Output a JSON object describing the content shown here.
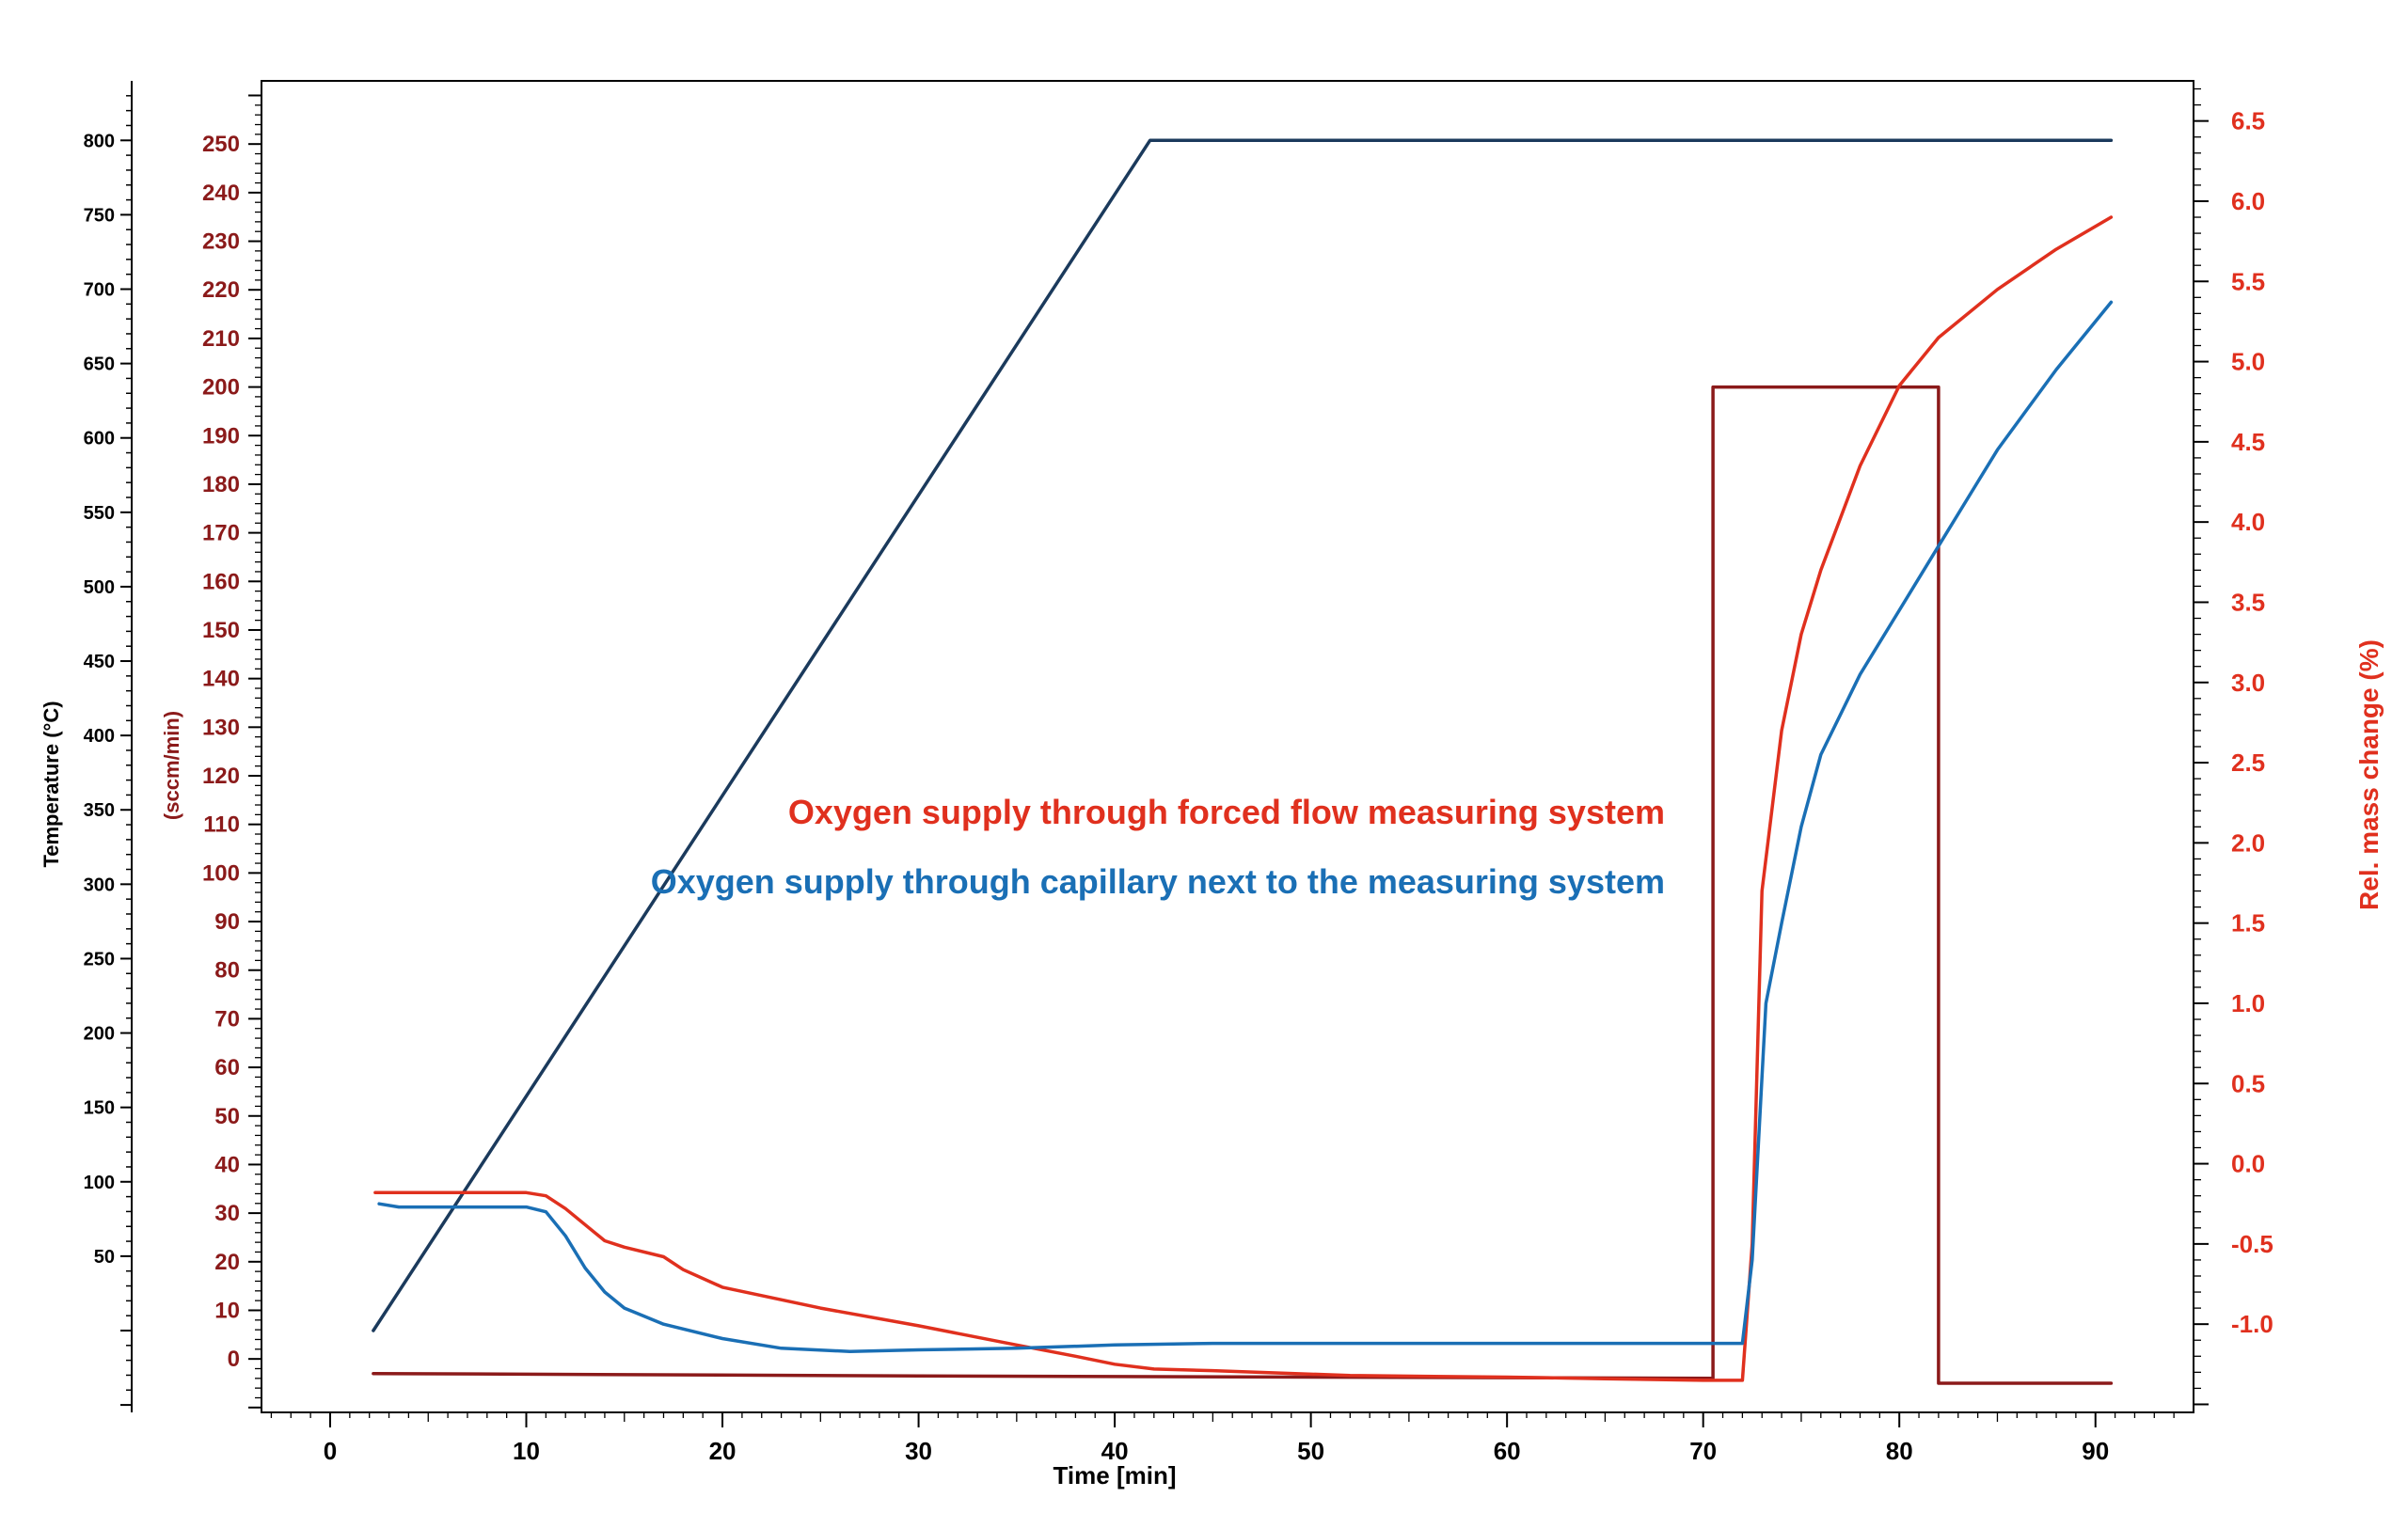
{
  "chart_data": {
    "type": "line",
    "x_axis": {
      "label": "Time [min]",
      "ticks": [
        0,
        10,
        20,
        30,
        40,
        50,
        60,
        70,
        80,
        90
      ],
      "range": [
        -3.5,
        95
      ]
    },
    "y_axes": {
      "temperature": {
        "label": "Temperature (°C)",
        "ticks": [
          50,
          100,
          150,
          200,
          250,
          300,
          350,
          400,
          450,
          500,
          550,
          600,
          650,
          700,
          750,
          800
        ],
        "range": [
          -55,
          840
        ],
        "color": "#000000"
      },
      "flow": {
        "label": "(sccm/min)",
        "ticks": [
          0,
          10,
          20,
          30,
          40,
          50,
          60,
          70,
          80,
          90,
          100,
          110,
          120,
          130,
          140,
          150,
          160,
          170,
          180,
          190,
          200,
          210,
          220,
          230,
          240,
          250
        ],
        "range": [
          -11,
          263
        ],
        "color": "#8b1a1a"
      },
      "mass": {
        "label": "Rel. mass change (%)",
        "ticks": [
          -1.0,
          -0.5,
          0.0,
          0.5,
          1.0,
          1.5,
          2.0,
          2.5,
          3.0,
          3.5,
          4.0,
          4.5,
          5.0,
          5.5,
          6.0,
          6.5
        ],
        "tick_labels": [
          "-1.0",
          "-0.5",
          "0.0",
          "0.5",
          "1.0",
          "1.5",
          "2.0",
          "2.5",
          "3.0",
          "3.5",
          "4.0",
          "4.5",
          "5.0",
          "5.5",
          "6.0",
          "6.5"
        ],
        "range": [
          -1.55,
          6.75
        ],
        "color": "#e0301e"
      }
    },
    "annotations": [
      {
        "text": "Oxygen supply through forced flow measuring system",
        "color": "#e0301e"
      },
      {
        "text": "Oxygen supply through capillary next to the measuring system",
        "color": "#1a6fb5"
      }
    ],
    "series": [
      {
        "axis": "temperature",
        "color": "#1b3a5c",
        "points": [
          [
            2.2,
            0
          ],
          [
            41.8,
            800
          ],
          [
            90.8,
            800
          ]
        ]
      },
      {
        "axis": "flow",
        "color": "#8b1a1a",
        "points": [
          [
            2.2,
            -3
          ],
          [
            30,
            -3.5
          ],
          [
            70.5,
            -4
          ],
          [
            70.5,
            200
          ],
          [
            82,
            200
          ],
          [
            82,
            -5
          ],
          [
            90.8,
            -5
          ]
        ]
      },
      {
        "axis": "mass",
        "color": "#e0301e",
        "points": [
          [
            2.3,
            -0.18
          ],
          [
            10,
            -0.18
          ],
          [
            11,
            -0.2
          ],
          [
            12,
            -0.28
          ],
          [
            14,
            -0.48
          ],
          [
            15,
            -0.52
          ],
          [
            17,
            -0.58
          ],
          [
            18,
            -0.66
          ],
          [
            20,
            -0.77
          ],
          [
            25,
            -0.9
          ],
          [
            30,
            -1.01
          ],
          [
            35,
            -1.13
          ],
          [
            38,
            -1.2
          ],
          [
            40,
            -1.25
          ],
          [
            42,
            -1.28
          ],
          [
            45,
            -1.29
          ],
          [
            52,
            -1.32
          ],
          [
            60,
            -1.33
          ],
          [
            65,
            -1.34
          ],
          [
            70,
            -1.35
          ],
          [
            72,
            -1.35
          ],
          [
            72.5,
            -0.5
          ],
          [
            73,
            1.7
          ],
          [
            74,
            2.7
          ],
          [
            75,
            3.3
          ],
          [
            76,
            3.7
          ],
          [
            78,
            4.35
          ],
          [
            80,
            4.85
          ],
          [
            82,
            5.15
          ],
          [
            85,
            5.45
          ],
          [
            88,
            5.7
          ],
          [
            90.8,
            5.9
          ]
        ]
      },
      {
        "axis": "mass",
        "color": "#1a6fb5",
        "points": [
          [
            2.5,
            -0.25
          ],
          [
            3.5,
            -0.27
          ],
          [
            5,
            -0.27
          ],
          [
            8,
            -0.27
          ],
          [
            10,
            -0.27
          ],
          [
            11,
            -0.3
          ],
          [
            12,
            -0.45
          ],
          [
            13,
            -0.65
          ],
          [
            14,
            -0.8
          ],
          [
            15,
            -0.9
          ],
          [
            17,
            -1.0
          ],
          [
            20,
            -1.09
          ],
          [
            23,
            -1.15
          ],
          [
            26.5,
            -1.17
          ],
          [
            30,
            -1.16
          ],
          [
            35,
            -1.15
          ],
          [
            40,
            -1.13
          ],
          [
            45,
            -1.12
          ],
          [
            55,
            -1.12
          ],
          [
            65,
            -1.12
          ],
          [
            72,
            -1.12
          ],
          [
            72.5,
            -0.6
          ],
          [
            73.2,
            1.0
          ],
          [
            74,
            1.5
          ],
          [
            75,
            2.1
          ],
          [
            76,
            2.55
          ],
          [
            78,
            3.05
          ],
          [
            80,
            3.45
          ],
          [
            82,
            3.85
          ],
          [
            84,
            4.25
          ],
          [
            85,
            4.45
          ],
          [
            88,
            4.95
          ],
          [
            90.8,
            5.37
          ]
        ]
      }
    ]
  }
}
